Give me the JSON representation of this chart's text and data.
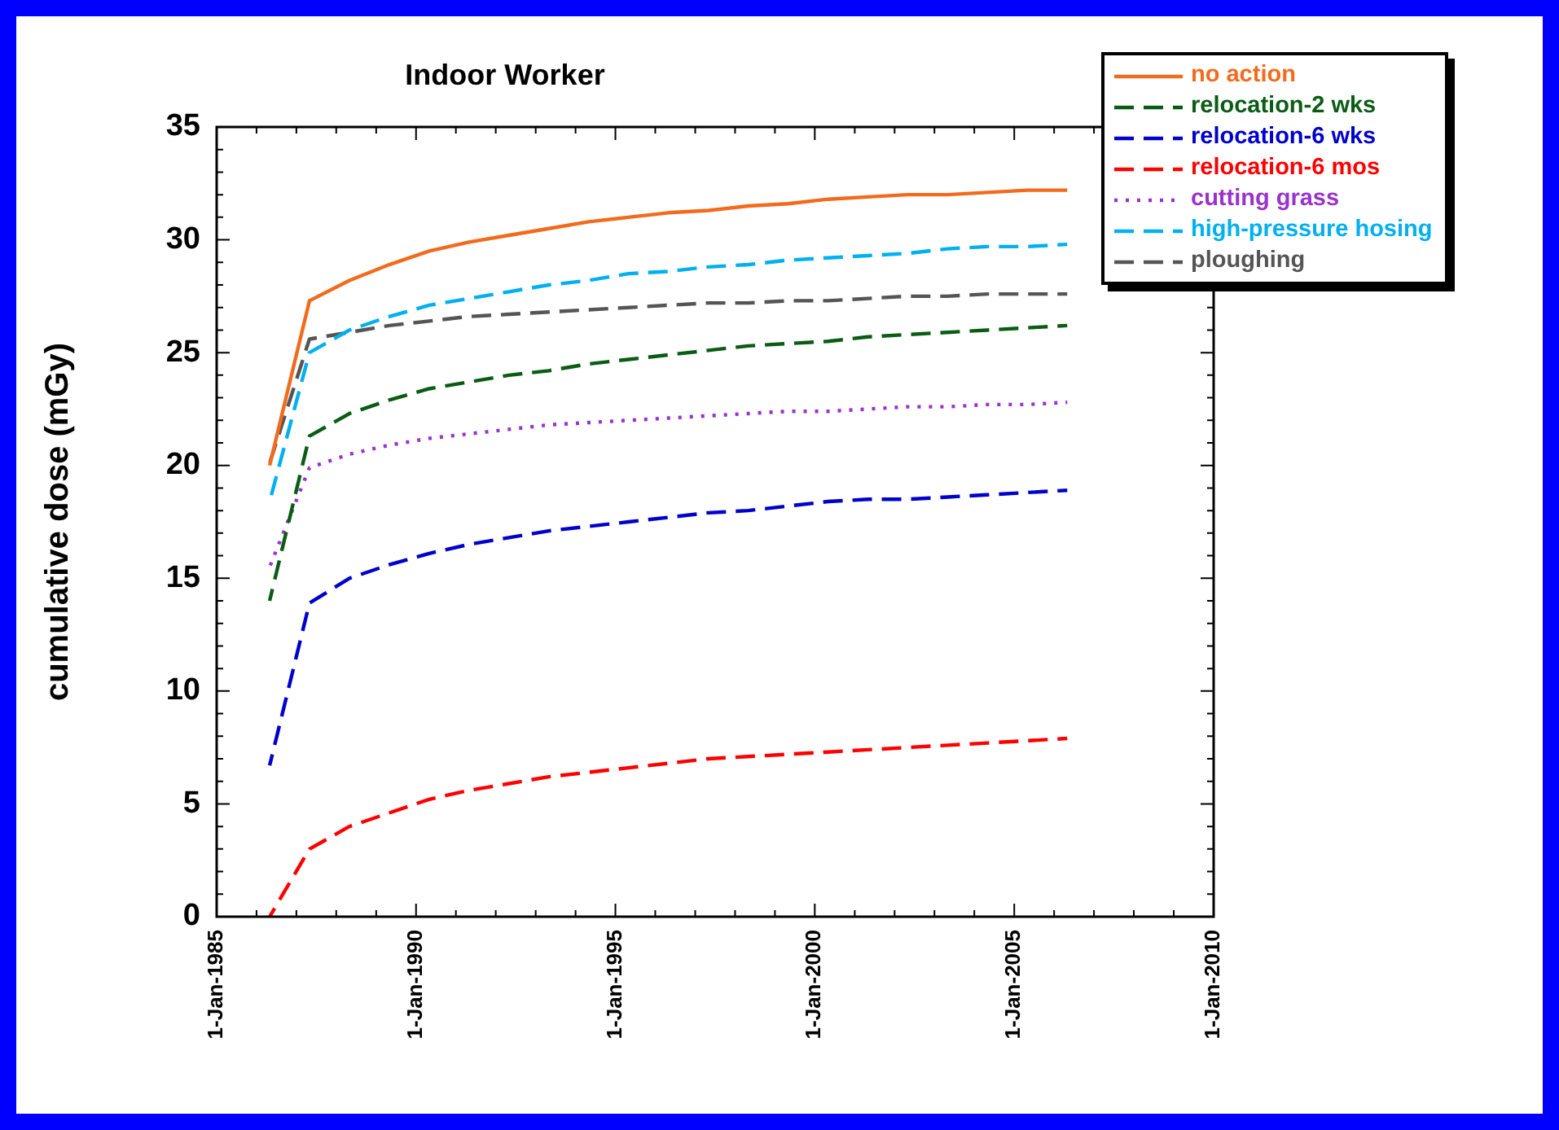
{
  "chart_data": {
    "type": "line",
    "title": "Indoor Worker",
    "ylabel": "cumulative dose (mGy)",
    "x": [
      "1986-05",
      "1987-05",
      "1988-05",
      "1989-05",
      "1990-05",
      "1991-05",
      "1992-05",
      "1993-05",
      "1994-05",
      "1995-05",
      "1996-05",
      "1997-05",
      "1998-05",
      "1999-05",
      "2000-05",
      "2001-05",
      "2002-05",
      "2003-05",
      "2004-05",
      "2005-05",
      "2006-05"
    ],
    "series": [
      {
        "name": "no action",
        "color": "#f26b1d",
        "line_style": "solid",
        "values": [
          20.0,
          27.3,
          28.2,
          28.9,
          29.5,
          29.9,
          30.2,
          30.5,
          30.8,
          31.0,
          31.2,
          31.3,
          31.5,
          31.6,
          31.8,
          31.9,
          32.0,
          32.0,
          32.1,
          32.2,
          32.2
        ]
      },
      {
        "name": "relocation-2 wks",
        "color": "#0a5c14",
        "line_style": "dashed",
        "values": [
          14.0,
          21.3,
          22.3,
          22.9,
          23.4,
          23.7,
          24.0,
          24.2,
          24.5,
          24.7,
          24.9,
          25.1,
          25.3,
          25.4,
          25.5,
          25.7,
          25.8,
          25.9,
          26.0,
          26.1,
          26.2
        ]
      },
      {
        "name": "relocation-6 wks",
        "color": "#0000cc",
        "line_style": "dashed",
        "values": [
          6.7,
          13.9,
          15.0,
          15.6,
          16.1,
          16.5,
          16.8,
          17.1,
          17.3,
          17.5,
          17.7,
          17.9,
          18.0,
          18.2,
          18.4,
          18.5,
          18.5,
          18.6,
          18.7,
          18.8,
          18.9
        ]
      },
      {
        "name": "relocation-6 mos",
        "color": "#ff0000",
        "line_style": "dashed",
        "values": [
          0,
          3.0,
          4.0,
          4.6,
          5.2,
          5.6,
          5.9,
          6.2,
          6.4,
          6.6,
          6.8,
          7.0,
          7.1,
          7.2,
          7.3,
          7.4,
          7.5,
          7.6,
          7.7,
          7.8,
          7.9
        ]
      },
      {
        "name": "cutting grass",
        "color": "#9933cc",
        "line_style": "dotted",
        "values": [
          15.5,
          19.9,
          20.5,
          20.9,
          21.2,
          21.4,
          21.6,
          21.8,
          21.9,
          22.0,
          22.1,
          22.2,
          22.3,
          22.4,
          22.4,
          22.5,
          22.6,
          22.6,
          22.7,
          22.7,
          22.8
        ]
      },
      {
        "name": "high-pressure hosing",
        "color": "#00b0f0",
        "line_style": "dashed",
        "values": [
          18.4,
          25.0,
          26.0,
          26.6,
          27.1,
          27.4,
          27.7,
          28.0,
          28.2,
          28.5,
          28.6,
          28.8,
          28.9,
          29.1,
          29.2,
          29.3,
          29.4,
          29.6,
          29.7,
          29.7,
          29.8
        ]
      },
      {
        "name": "ploughing",
        "color": "#555555",
        "line_style": "dashed",
        "values": [
          20.1,
          25.6,
          25.9,
          26.2,
          26.4,
          26.6,
          26.7,
          26.8,
          26.9,
          27.0,
          27.1,
          27.2,
          27.2,
          27.3,
          27.3,
          27.4,
          27.5,
          27.5,
          27.6,
          27.6,
          27.6
        ]
      }
    ],
    "xlim": [
      "1985-01-01",
      "2010-01-01"
    ],
    "xticks": [
      {
        "value": "1985-01-01",
        "label": "1-Jan-1985"
      },
      {
        "value": "1986-01-01",
        "label": null
      },
      {
        "value": "1987-01-01",
        "label": null
      },
      {
        "value": "1988-01-01",
        "label": null
      },
      {
        "value": "1989-01-01",
        "label": null
      },
      {
        "value": "1990-01-01",
        "label": "1-Jan-1990"
      },
      {
        "value": "1991-01-01",
        "label": null
      },
      {
        "value": "1992-01-01",
        "label": null
      },
      {
        "value": "1993-01-01",
        "label": null
      },
      {
        "value": "1994-01-01",
        "label": null
      },
      {
        "value": "1995-01-01",
        "label": "1-Jan-1995"
      },
      {
        "value": "1996-01-01",
        "label": null
      },
      {
        "value": "1997-01-01",
        "label": null
      },
      {
        "value": "1998-01-01",
        "label": null
      },
      {
        "value": "1999-01-01",
        "label": null
      },
      {
        "value": "2000-01-01",
        "label": "1-Jan-2000"
      },
      {
        "value": "2001-01-01",
        "label": null
      },
      {
        "value": "2002-01-01",
        "label": null
      },
      {
        "value": "2003-01-01",
        "label": null
      },
      {
        "value": "2004-01-01",
        "label": null
      },
      {
        "value": "2005-01-01",
        "label": "1-Jan-2005"
      },
      {
        "value": "2006-01-01",
        "label": null
      },
      {
        "value": "2007-01-01",
        "label": null
      },
      {
        "value": "2008-01-01",
        "label": null
      },
      {
        "value": "2009-01-01",
        "label": null
      },
      {
        "value": "2010-01-01",
        "label": "1-Jan-2010"
      }
    ],
    "ylim": [
      0,
      35
    ],
    "yticks": [
      0,
      {
        "value": 1,
        "label": null
      },
      {
        "value": 2,
        "label": null
      },
      {
        "value": 3,
        "label": null
      },
      {
        "value": 4,
        "label": null
      },
      5,
      {
        "value": 6,
        "label": null
      },
      {
        "value": 7,
        "label": null
      },
      {
        "value": 8,
        "label": null
      },
      {
        "value": 9,
        "label": null
      },
      10,
      {
        "value": 11,
        "label": null
      },
      {
        "value": 12,
        "label": null
      },
      {
        "value": 13,
        "label": null
      },
      {
        "value": 14,
        "label": null
      },
      15,
      {
        "value": 16,
        "label": null
      },
      {
        "value": 17,
        "label": null
      },
      {
        "value": 18,
        "label": null
      },
      {
        "value": 19,
        "label": null
      },
      20,
      {
        "value": 21,
        "label": null
      },
      {
        "value": 22,
        "label": null
      },
      {
        "value": 23,
        "label": null
      },
      {
        "value": 24,
        "label": null
      },
      25,
      {
        "value": 26,
        "label": null
      },
      {
        "value": 27,
        "label": null
      },
      {
        "value": 28,
        "label": null
      },
      {
        "value": 29,
        "label": null
      },
      30,
      {
        "value": 31,
        "label": null
      },
      {
        "value": 32,
        "label": null
      },
      {
        "value": 33,
        "label": null
      },
      {
        "value": 34,
        "label": null
      },
      35
    ],
    "legend": "top right",
    "marker": "none"
  }
}
